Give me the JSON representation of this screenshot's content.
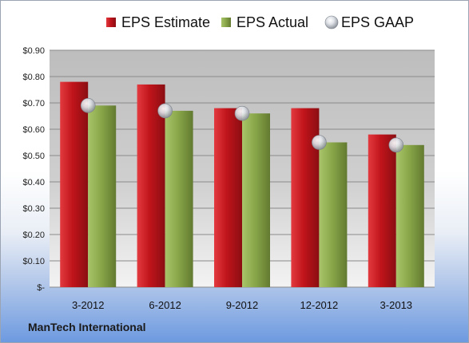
{
  "chart_data": {
    "type": "bar",
    "categories": [
      "3-2012",
      "6-2012",
      "9-2012",
      "12-2012",
      "3-2013"
    ],
    "series": [
      {
        "name": "EPS Estimate",
        "values": [
          0.78,
          0.77,
          0.68,
          0.68,
          0.58
        ],
        "color": "#c0141b",
        "kind": "bar"
      },
      {
        "name": "EPS Actual",
        "values": [
          0.69,
          0.67,
          0.66,
          0.55,
          0.54
        ],
        "color": "#8aa84a",
        "kind": "bar"
      },
      {
        "name": "EPS GAAP",
        "values": [
          0.69,
          0.67,
          0.66,
          0.55,
          0.54
        ],
        "color": "#c8ccd4",
        "kind": "marker"
      }
    ],
    "y_ticks": [
      {
        "value": 0.9,
        "label": "$0.90"
      },
      {
        "value": 0.8,
        "label": "$0.80"
      },
      {
        "value": 0.7,
        "label": "$0.70"
      },
      {
        "value": 0.6,
        "label": "$0.60"
      },
      {
        "value": 0.5,
        "label": "$0.50"
      },
      {
        "value": 0.4,
        "label": "$0.40"
      },
      {
        "value": 0.3,
        "label": "$0.30"
      },
      {
        "value": 0.2,
        "label": "$0.20"
      },
      {
        "value": 0.1,
        "label": "$0.10"
      },
      {
        "value": 0.0,
        "label": "$-"
      }
    ],
    "ylim": [
      0,
      0.9
    ],
    "grid": true,
    "legend_position": "top-center",
    "company": "ManTech International"
  }
}
